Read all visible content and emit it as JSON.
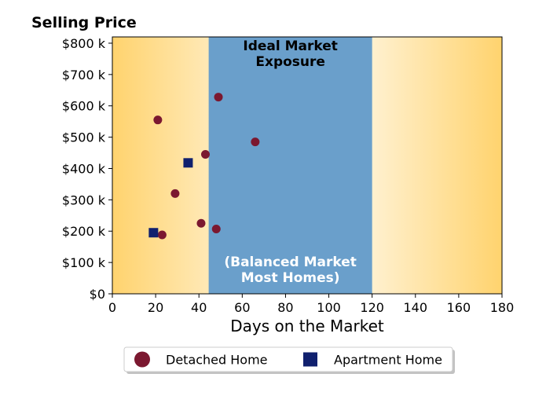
{
  "chart_data": {
    "type": "scatter",
    "title": "",
    "xlabel": "Days on the Market",
    "ylabel": "Selling Price",
    "xlim": [
      0,
      180
    ],
    "ylim": [
      0,
      820000
    ],
    "x_ticks": [
      0,
      20,
      40,
      60,
      80,
      100,
      120,
      140,
      160,
      180
    ],
    "x_tick_labels": [
      "0",
      "20",
      "40",
      "60",
      "80",
      "100",
      "120",
      "140",
      "160",
      "180"
    ],
    "y_ticks": [
      0,
      100000,
      200000,
      300000,
      400000,
      500000,
      600000,
      700000,
      800000
    ],
    "y_tick_labels": [
      "$0",
      "$100 k",
      "$200 k",
      "$300 k",
      "$400 k",
      "$500 k",
      "$600 k",
      "$700 k",
      "$800 k"
    ],
    "grid": false,
    "legend_position": "bottom-center",
    "band": {
      "x_range": [
        44.5,
        120
      ],
      "top_label": [
        "Ideal Market",
        "Exposure"
      ],
      "bottom_label": [
        "(Balanced Market",
        "Most Homes)"
      ],
      "color": "#6a9fcb"
    },
    "background_gradient": {
      "edge_color": "#ffd36e",
      "center_color": "#ffffff"
    },
    "series": [
      {
        "name": "Detached Home",
        "marker": "circle",
        "color": "#7b1830",
        "points": [
          {
            "x": 21,
            "y": 555000
          },
          {
            "x": 49,
            "y": 628000
          },
          {
            "x": 66,
            "y": 485000
          },
          {
            "x": 43,
            "y": 445000
          },
          {
            "x": 29,
            "y": 320000
          },
          {
            "x": 41,
            "y": 225000
          },
          {
            "x": 48,
            "y": 207000
          },
          {
            "x": 23,
            "y": 188000
          }
        ]
      },
      {
        "name": "Apartment Home",
        "marker": "square",
        "color": "#10206e",
        "points": [
          {
            "x": 35,
            "y": 418000
          },
          {
            "x": 19,
            "y": 195000
          }
        ]
      }
    ]
  }
}
